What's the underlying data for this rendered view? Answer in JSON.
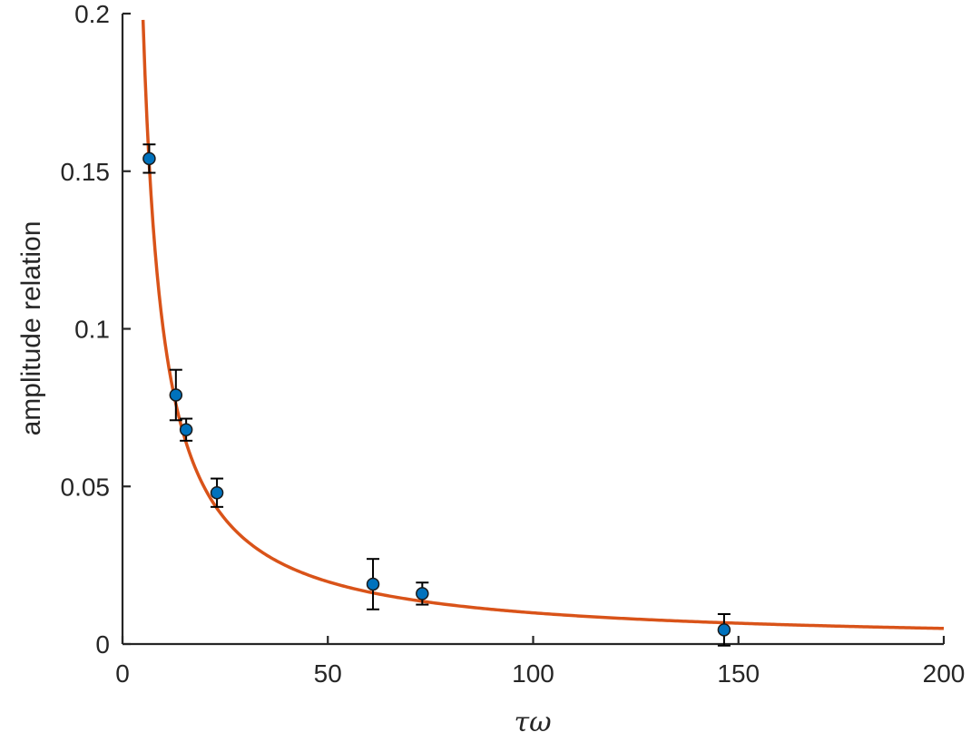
{
  "chart_data": {
    "type": "scatter",
    "title": "",
    "xlabel": "τω",
    "ylabel": "amplitude relation",
    "xlim": [
      0,
      200
    ],
    "ylim": [
      0,
      0.2
    ],
    "xticks": [
      0,
      50,
      100,
      150,
      200
    ],
    "xtick_labels": [
      "0",
      "50",
      "100",
      "150",
      "200"
    ],
    "yticks": [
      0,
      0.05,
      0.1,
      0.15,
      0.2
    ],
    "ytick_labels": [
      "0",
      "0.05",
      "0.1",
      "0.15",
      "0.2"
    ],
    "grid": false,
    "legend": "none",
    "series": [
      {
        "kind": "points_with_errorbars",
        "color": "#0072BD",
        "x": [
          6.5,
          13,
          15.5,
          23,
          61,
          73,
          146.5
        ],
        "y": [
          0.154,
          0.079,
          0.068,
          0.048,
          0.019,
          0.016,
          0.0045
        ],
        "err": [
          0.0045,
          0.008,
          0.0035,
          0.0045,
          0.008,
          0.0035,
          0.005
        ]
      },
      {
        "kind": "fit_line",
        "color": "#D95319",
        "model": "a / x",
        "a": 0.99,
        "x_range": [
          5,
          200
        ]
      }
    ]
  }
}
